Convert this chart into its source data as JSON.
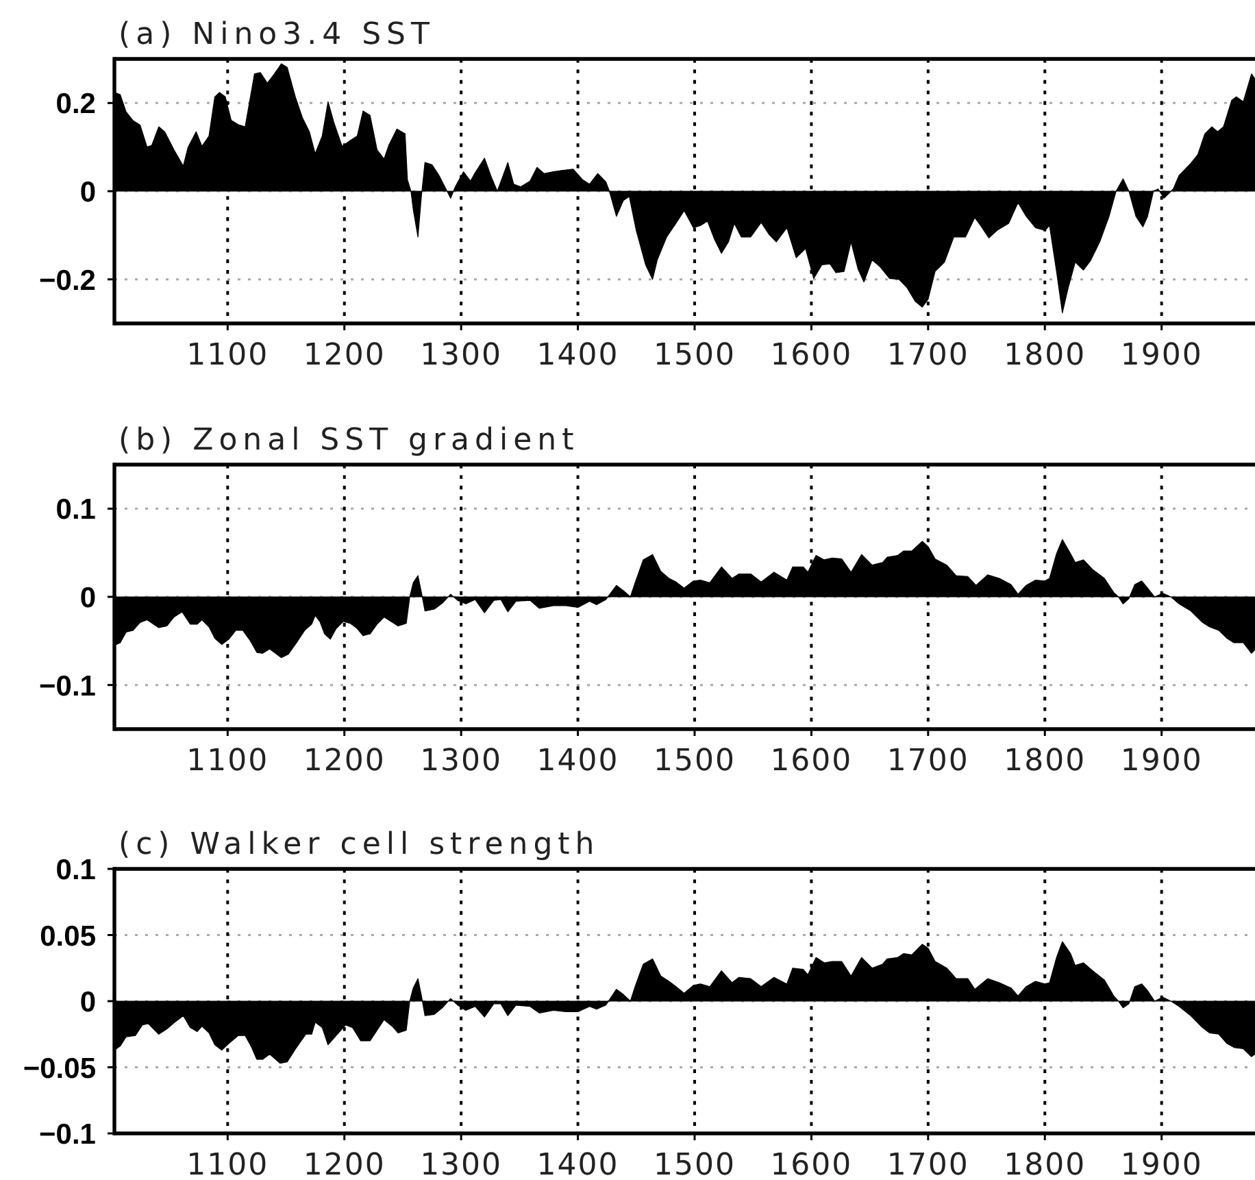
{
  "chart_data": [
    {
      "type": "area",
      "title": "(a) Nino3.4 SST",
      "color": "#000000",
      "xlim": [
        1003,
        1980
      ],
      "ylim": [
        -0.3,
        0.3
      ],
      "xticks": [
        1100,
        1200,
        1300,
        1400,
        1500,
        1600,
        1700,
        1800,
        1900
      ],
      "yticks": [
        -0.2,
        0,
        0.2
      ],
      "grid": true,
      "x": [
        1003,
        1008,
        1013,
        1019,
        1025,
        1031,
        1035,
        1041,
        1046,
        1054,
        1062,
        1066,
        1073,
        1078,
        1084,
        1089,
        1093,
        1098,
        1103,
        1109,
        1115,
        1123,
        1128,
        1134,
        1140,
        1146,
        1151,
        1158,
        1164,
        1170,
        1175,
        1181,
        1186,
        1191,
        1198,
        1205,
        1211,
        1216,
        1222,
        1228,
        1234,
        1238,
        1245,
        1252,
        1254,
        1257,
        1259,
        1263,
        1266,
        1269,
        1275,
        1281,
        1287,
        1291,
        1295,
        1302,
        1308,
        1312,
        1320,
        1326,
        1331,
        1336,
        1340,
        1345,
        1351,
        1359,
        1365,
        1371,
        1379,
        1386,
        1396,
        1404,
        1410,
        1417,
        1424,
        1427,
        1433,
        1439,
        1444,
        1450,
        1458,
        1464,
        1468,
        1476,
        1484,
        1491,
        1499,
        1505,
        1511,
        1517,
        1523,
        1529,
        1534,
        1540,
        1548,
        1557,
        1564,
        1570,
        1579,
        1587,
        1595,
        1602,
        1609,
        1616,
        1621,
        1628,
        1634,
        1640,
        1645,
        1652,
        1659,
        1667,
        1675,
        1682,
        1689,
        1695,
        1700,
        1706,
        1714,
        1722,
        1732,
        1740,
        1745,
        1752,
        1759,
        1769,
        1777,
        1784,
        1792,
        1800,
        1804,
        1810,
        1815,
        1820,
        1826,
        1833,
        1839,
        1847,
        1855,
        1861,
        1867,
        1872,
        1878,
        1884,
        1888,
        1893,
        1897,
        1902,
        1910,
        1915,
        1925,
        1931,
        1937,
        1943,
        1948,
        1953,
        1960,
        1964,
        1970,
        1977,
        1980
      ],
      "values": [
        0.224,
        0.219,
        0.18,
        0.16,
        0.15,
        0.1,
        0.104,
        0.146,
        0.135,
        0.094,
        0.057,
        0.099,
        0.135,
        0.102,
        0.125,
        0.214,
        0.224,
        0.214,
        0.161,
        0.151,
        0.146,
        0.266,
        0.269,
        0.245,
        0.266,
        0.289,
        0.281,
        0.214,
        0.167,
        0.135,
        0.085,
        0.125,
        0.203,
        0.156,
        0.102,
        0.115,
        0.125,
        0.182,
        0.172,
        0.094,
        0.073,
        0.104,
        0.141,
        0.13,
        0.026,
        0,
        -0.042,
        -0.104,
        -0.01,
        0.065,
        0.06,
        0.036,
        0.005,
        -0.016,
        0.01,
        0.044,
        0.023,
        0.042,
        0.075,
        0.031,
        0,
        0.036,
        0.065,
        0.016,
        0.01,
        0.023,
        0.054,
        0.04,
        0.044,
        0.047,
        0.05,
        0.026,
        0.016,
        0.04,
        0.021,
        0,
        -0.057,
        -0.021,
        -0.012,
        -0.089,
        -0.167,
        -0.2,
        -0.156,
        -0.104,
        -0.073,
        -0.044,
        -0.083,
        -0.078,
        -0.068,
        -0.109,
        -0.141,
        -0.115,
        -0.073,
        -0.104,
        -0.104,
        -0.071,
        -0.099,
        -0.115,
        -0.083,
        -0.151,
        -0.13,
        -0.198,
        -0.167,
        -0.165,
        -0.185,
        -0.182,
        -0.115,
        -0.177,
        -0.206,
        -0.156,
        -0.172,
        -0.198,
        -0.2,
        -0.219,
        -0.25,
        -0.263,
        -0.245,
        -0.182,
        -0.161,
        -0.104,
        -0.104,
        -0.06,
        -0.078,
        -0.106,
        -0.089,
        -0.073,
        -0.026,
        -0.057,
        -0.083,
        -0.089,
        -0.078,
        -0.182,
        -0.276,
        -0.219,
        -0.161,
        -0.179,
        -0.158,
        -0.115,
        -0.057,
        0,
        0.028,
        0,
        -0.057,
        -0.081,
        -0.057,
        0,
        0.005,
        -0.016,
        0.005,
        0.036,
        0.063,
        0.083,
        0.13,
        0.146,
        0.135,
        0.146,
        0.206,
        0.214,
        0.203,
        0.266,
        0.255
      ]
    },
    {
      "type": "area",
      "title": "(b) Zonal SST gradient",
      "color": "#000000",
      "xlim": [
        1003,
        1980
      ],
      "ylim": [
        -0.15,
        0.15
      ],
      "xticks": [
        1100,
        1200,
        1300,
        1400,
        1500,
        1600,
        1700,
        1800,
        1900
      ],
      "yticks": [
        -0.1,
        0,
        0.1
      ],
      "grid": true,
      "x": [
        1003,
        1008,
        1013,
        1019,
        1025,
        1031,
        1041,
        1048,
        1054,
        1061,
        1068,
        1074,
        1078,
        1084,
        1089,
        1095,
        1101,
        1107,
        1113,
        1119,
        1125,
        1130,
        1136,
        1146,
        1152,
        1159,
        1166,
        1172,
        1175,
        1179,
        1183,
        1188,
        1193,
        1199,
        1205,
        1211,
        1216,
        1222,
        1228,
        1234,
        1240,
        1246,
        1253,
        1256,
        1259,
        1263,
        1266,
        1269,
        1277,
        1284,
        1291,
        1297,
        1304,
        1312,
        1320,
        1328,
        1334,
        1340,
        1347,
        1359,
        1367,
        1379,
        1390,
        1400,
        1410,
        1416,
        1424,
        1433,
        1439,
        1445,
        1449,
        1456,
        1464,
        1471,
        1478,
        1484,
        1491,
        1499,
        1505,
        1513,
        1523,
        1532,
        1538,
        1548,
        1557,
        1568,
        1579,
        1584,
        1593,
        1597,
        1604,
        1611,
        1618,
        1626,
        1634,
        1643,
        1652,
        1661,
        1665,
        1674,
        1679,
        1686,
        1695,
        1700,
        1706,
        1716,
        1724,
        1734,
        1741,
        1751,
        1761,
        1771,
        1777,
        1784,
        1792,
        1800,
        1804,
        1810,
        1815,
        1822,
        1826,
        1833,
        1841,
        1851,
        1859,
        1863,
        1867,
        1872,
        1877,
        1883,
        1888,
        1894,
        1901,
        1908,
        1915,
        1925,
        1935,
        1941,
        1949,
        1956,
        1962,
        1970,
        1977,
        1980
      ],
      "values": [
        -0.055,
        -0.052,
        -0.04,
        -0.038,
        -0.029,
        -0.026,
        -0.035,
        -0.033,
        -0.023,
        -0.017,
        -0.031,
        -0.031,
        -0.026,
        -0.034,
        -0.047,
        -0.054,
        -0.048,
        -0.038,
        -0.038,
        -0.049,
        -0.063,
        -0.064,
        -0.059,
        -0.069,
        -0.065,
        -0.052,
        -0.038,
        -0.031,
        -0.021,
        -0.028,
        -0.042,
        -0.048,
        -0.036,
        -0.028,
        -0.03,
        -0.036,
        -0.044,
        -0.042,
        -0.031,
        -0.023,
        -0.028,
        -0.033,
        -0.03,
        0,
        0.016,
        0.024,
        0.005,
        -0.016,
        -0.014,
        -0.007,
        0.003,
        -0.004,
        -0.008,
        -0.003,
        -0.018,
        -0.004,
        -0.003,
        -0.017,
        -0.005,
        -0.004,
        -0.013,
        -0.01,
        -0.01,
        -0.012,
        -0.005,
        -0.009,
        -0.003,
        0.013,
        0.007,
        0,
        0.016,
        0.042,
        0.048,
        0.029,
        0.021,
        0.017,
        0.01,
        0.018,
        0.019,
        0.016,
        0.034,
        0.021,
        0.026,
        0.026,
        0.017,
        0.028,
        0.019,
        0.034,
        0.034,
        0.028,
        0.047,
        0.042,
        0.044,
        0.043,
        0.028,
        0.048,
        0.036,
        0.039,
        0.045,
        0.047,
        0.052,
        0.052,
        0.063,
        0.057,
        0.043,
        0.036,
        0.024,
        0.023,
        0.013,
        0.025,
        0.021,
        0.014,
        0.003,
        0.013,
        0.019,
        0.018,
        0.021,
        0.049,
        0.065,
        0.049,
        0.039,
        0.042,
        0.031,
        0.021,
        0.005,
        0,
        -0.008,
        -0.002,
        0.014,
        0.018,
        0.01,
        0,
        0.004,
        0,
        -0.008,
        -0.016,
        -0.029,
        -0.034,
        -0.038,
        -0.047,
        -0.052,
        -0.052,
        -0.064,
        -0.06
      ]
    },
    {
      "type": "area",
      "title": "(c) Walker cell strength",
      "color": "#000000",
      "xlim": [
        1003,
        1980
      ],
      "ylim": [
        -0.1,
        0.1
      ],
      "xticks": [
        1100,
        1200,
        1300,
        1400,
        1500,
        1600,
        1700,
        1800,
        1900
      ],
      "yticks": [
        -0.1,
        -0.05,
        0,
        0.05,
        0.1
      ],
      "grid": true,
      "x": [
        1003,
        1008,
        1013,
        1021,
        1027,
        1032,
        1041,
        1048,
        1056,
        1062,
        1068,
        1074,
        1078,
        1084,
        1089,
        1095,
        1101,
        1109,
        1115,
        1120,
        1125,
        1130,
        1136,
        1145,
        1151,
        1159,
        1167,
        1172,
        1175,
        1181,
        1186,
        1193,
        1201,
        1207,
        1214,
        1222,
        1228,
        1234,
        1241,
        1246,
        1253,
        1256,
        1259,
        1263,
        1266,
        1269,
        1277,
        1284,
        1291,
        1297,
        1304,
        1312,
        1320,
        1328,
        1334,
        1340,
        1347,
        1359,
        1367,
        1379,
        1390,
        1400,
        1410,
        1416,
        1424,
        1433,
        1439,
        1445,
        1449,
        1456,
        1464,
        1471,
        1478,
        1484,
        1491,
        1499,
        1505,
        1513,
        1523,
        1532,
        1538,
        1548,
        1557,
        1568,
        1579,
        1584,
        1593,
        1597,
        1604,
        1611,
        1618,
        1626,
        1634,
        1643,
        1652,
        1661,
        1665,
        1674,
        1679,
        1686,
        1695,
        1700,
        1706,
        1716,
        1724,
        1734,
        1740,
        1751,
        1761,
        1771,
        1777,
        1784,
        1792,
        1800,
        1804,
        1810,
        1815,
        1822,
        1826,
        1833,
        1841,
        1851,
        1859,
        1863,
        1867,
        1872,
        1877,
        1883,
        1888,
        1894,
        1901,
        1908,
        1915,
        1925,
        1935,
        1941,
        1949,
        1956,
        1962,
        1970,
        1977,
        1980
      ],
      "values": [
        -0.037,
        -0.034,
        -0.027,
        -0.026,
        -0.018,
        -0.017,
        -0.025,
        -0.021,
        -0.015,
        -0.011,
        -0.02,
        -0.023,
        -0.019,
        -0.024,
        -0.033,
        -0.037,
        -0.032,
        -0.026,
        -0.026,
        -0.034,
        -0.044,
        -0.044,
        -0.04,
        -0.047,
        -0.046,
        -0.035,
        -0.025,
        -0.025,
        -0.016,
        -0.02,
        -0.033,
        -0.026,
        -0.018,
        -0.02,
        -0.03,
        -0.03,
        -0.022,
        -0.014,
        -0.019,
        -0.024,
        -0.022,
        0,
        0.01,
        0.017,
        0.004,
        -0.011,
        -0.01,
        -0.005,
        0.002,
        -0.003,
        -0.007,
        -0.004,
        -0.012,
        -0.002,
        -0.002,
        -0.011,
        -0.003,
        -0.004,
        -0.009,
        -0.007,
        -0.008,
        -0.008,
        -0.004,
        -0.006,
        -0.003,
        0.009,
        0.005,
        0,
        0.011,
        0.028,
        0.032,
        0.019,
        0.015,
        0.011,
        0.006,
        0.012,
        0.013,
        0.011,
        0.023,
        0.014,
        0.018,
        0.017,
        0.011,
        0.018,
        0.013,
        0.025,
        0.024,
        0.02,
        0.033,
        0.029,
        0.03,
        0.03,
        0.019,
        0.033,
        0.025,
        0.028,
        0.032,
        0.033,
        0.036,
        0.035,
        0.043,
        0.04,
        0.03,
        0.025,
        0.017,
        0.017,
        0.009,
        0.017,
        0.014,
        0.01,
        0.004,
        0.011,
        0.015,
        0.013,
        0.014,
        0.033,
        0.045,
        0.036,
        0.027,
        0.029,
        0.023,
        0.016,
        0.004,
        0,
        -0.005,
        -0.002,
        0.011,
        0.013,
        0.008,
        0,
        0.003,
        0,
        -0.004,
        -0.011,
        -0.02,
        -0.024,
        -0.025,
        -0.032,
        -0.035,
        -0.036,
        -0.042,
        -0.04
      ]
    }
  ]
}
